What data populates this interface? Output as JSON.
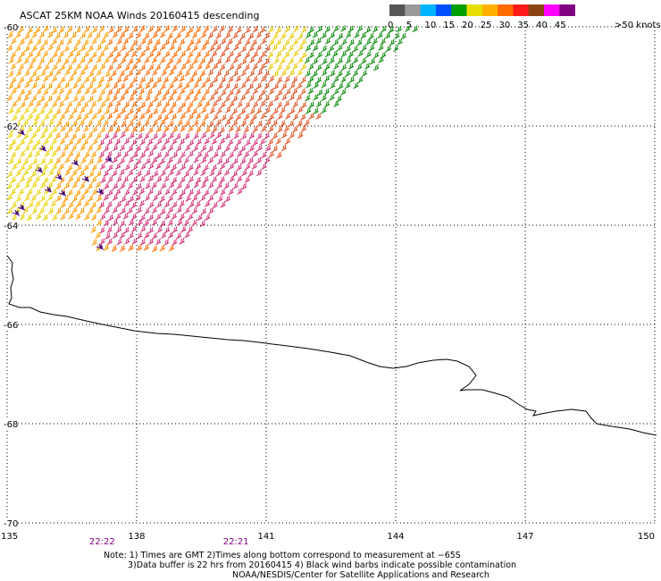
{
  "title": "ASCAT 25KM NOAA Winds 20160415 descending",
  "legend": {
    "unit_label": ">50 knots",
    "tick_labels": [
      "0",
      "5",
      "10",
      "15",
      "20",
      "25",
      "30",
      "35",
      "40",
      "45"
    ],
    "colors": [
      "#555555",
      "#9a9a9a",
      "#00b4ff",
      "#0050ff",
      "#00a000",
      "#e8e000",
      "#ffb000",
      "#ff6a00",
      "#ff1a1a",
      "#8b4513",
      "#ff00ff",
      "#800080"
    ]
  },
  "map": {
    "lon_range": [
      135,
      150
    ],
    "lat_range": [
      -70,
      -60
    ],
    "lon_ticks": [
      "135",
      "138",
      "141",
      "144",
      "147",
      "150"
    ],
    "lat_ticks": [
      "-60",
      "-62",
      "-64",
      "-66",
      "-68",
      "-70"
    ],
    "grid": "dotted",
    "time_labels": [
      {
        "text": "22:22",
        "lon": 137.2
      },
      {
        "text": "22:21",
        "lon": 140.3
      }
    ],
    "time_color": "#800080"
  },
  "notes": {
    "line1": "Note: 1) Times are GMT 2)Times along bottom correspond to measurement at −65S",
    "line2": "3)Data buffer is 22 hrs from 20160415 4) Black wind barbs indicate possible contamination",
    "line3": "NOAA/NESDIS/Center for Satellite Applications and Research"
  }
}
